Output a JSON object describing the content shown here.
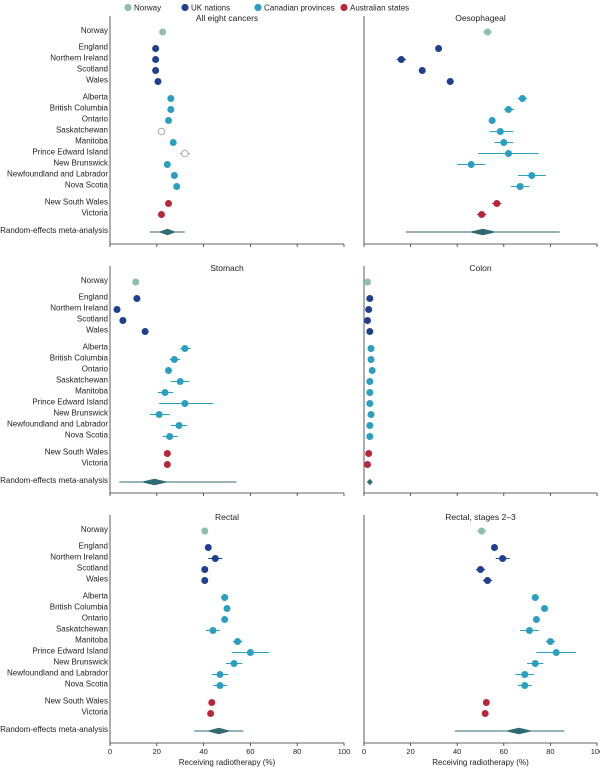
{
  "legend": [
    {
      "label": "Norway",
      "color": "#8fbfa8"
    },
    {
      "label": "UK nations",
      "color": "#1f3f8f"
    },
    {
      "label": "Canadian provinces",
      "color": "#2a9fc0"
    },
    {
      "label": "Australian states",
      "color": "#b8283a"
    }
  ],
  "labels": {
    "top": [
      "Norway",
      "England",
      "Northern Ireland",
      "Scotland",
      "Wales",
      "Alberta",
      "British Columbia",
      "Ontario",
      "Saskatchewan",
      "Manitoba",
      "Prince Edward Island",
      "New Brunswick",
      "Newfoundland and Labrador",
      "Nova Scotia",
      "New South Wales",
      "Victoria",
      "Random-effects meta-analysis"
    ],
    "middle": [
      "Norway",
      "England",
      "Northern Ireland",
      "Scotland",
      "Wales",
      "Alberta",
      "British Columbia",
      "Ontario",
      "Saskatchewan",
      "Manitoba",
      "Prince Edward Island",
      "New Brunswick",
      "Newfoundland and Labrador",
      "Nova Scotia",
      "New South Wales",
      "Victoria",
      "Random-effects meta-analysis"
    ],
    "bottom": [
      "Norway",
      "England",
      "Northern Ireland",
      "Scotland",
      "Wales",
      "Alberta",
      "British Columbia",
      "Ontario",
      "Saskatchewan",
      "Manitoba",
      "Prince Edward Island",
      "New Brunswick",
      "Newfoundland and Labrador",
      "Nova Scotia",
      "New South Wales",
      "Victoria",
      "Random-effects meta-analysis"
    ]
  },
  "xaxis": {
    "label": "Receiving radiotherapy (%)",
    "ticks": [
      "0",
      "20",
      "40",
      "60",
      "80",
      "100"
    ],
    "range": [
      0,
      100
    ]
  },
  "chart_data": [
    {
      "type": "forest",
      "title": "All eight cancers",
      "points": [
        {
          "g": "Norway",
          "v": 22.5,
          "lo": null,
          "hi": null
        },
        {
          "g": "UK nations",
          "v": 19.5,
          "lo": null,
          "hi": null
        },
        {
          "g": "UK nations",
          "v": 19.5,
          "lo": null,
          "hi": null
        },
        {
          "g": "UK nations",
          "v": 19.5,
          "lo": null,
          "hi": null
        },
        {
          "g": "UK nations",
          "v": 20.5,
          "lo": null,
          "hi": null
        },
        {
          "g": "Canadian provinces",
          "v": 26,
          "lo": null,
          "hi": null
        },
        {
          "g": "Canadian provinces",
          "v": 26,
          "lo": null,
          "hi": null
        },
        {
          "g": "Canadian provinces",
          "v": 25,
          "lo": null,
          "hi": null
        },
        {
          "g": "Canadian provinces",
          "v": 22,
          "lo": null,
          "hi": null,
          "open": true
        },
        {
          "g": "Canadian provinces",
          "v": 27,
          "lo": null,
          "hi": null
        },
        {
          "g": "Canadian provinces",
          "v": 32,
          "lo": 30,
          "hi": 34,
          "open": true
        },
        {
          "g": "Canadian provinces",
          "v": 24.5,
          "lo": null,
          "hi": null
        },
        {
          "g": "Canadian provinces",
          "v": 27.5,
          "lo": null,
          "hi": null
        },
        {
          "g": "Canadian provinces",
          "v": 28.5,
          "lo": null,
          "hi": null
        },
        {
          "g": "Australian states",
          "v": 25,
          "lo": null,
          "hi": null
        },
        {
          "g": "Australian states",
          "v": 22,
          "lo": null,
          "hi": null
        }
      ],
      "meta": {
        "v": 24.5,
        "lo": 17,
        "hi": 32
      }
    },
    {
      "type": "forest",
      "title": "Oesophageal",
      "points": [
        {
          "g": "Norway",
          "v": 53,
          "lo": 51,
          "hi": 55
        },
        {
          "g": "UK nations",
          "v": 32,
          "lo": null,
          "hi": null
        },
        {
          "g": "UK nations",
          "v": 16,
          "lo": 14,
          "hi": 18
        },
        {
          "g": "UK nations",
          "v": 25,
          "lo": null,
          "hi": null
        },
        {
          "g": "UK nations",
          "v": 37,
          "lo": 35.5,
          "hi": 38.5
        },
        {
          "g": "Canadian provinces",
          "v": 68,
          "lo": 66,
          "hi": 70
        },
        {
          "g": "Canadian provinces",
          "v": 62,
          "lo": 60,
          "hi": 64.5
        },
        {
          "g": "Canadian provinces",
          "v": 55,
          "lo": 53.5,
          "hi": 56.5
        },
        {
          "g": "Canadian provinces",
          "v": 58.5,
          "lo": 54,
          "hi": 64
        },
        {
          "g": "Canadian provinces",
          "v": 60,
          "lo": 56,
          "hi": 64
        },
        {
          "g": "Canadian provinces",
          "v": 62,
          "lo": 49,
          "hi": 75
        },
        {
          "g": "Canadian provinces",
          "v": 46,
          "lo": 40,
          "hi": 52
        },
        {
          "g": "Canadian provinces",
          "v": 72,
          "lo": 66,
          "hi": 78
        },
        {
          "g": "Canadian provinces",
          "v": 67,
          "lo": 63,
          "hi": 71
        },
        {
          "g": "Australian states",
          "v": 57,
          "lo": 55,
          "hi": 59
        },
        {
          "g": "Australian states",
          "v": 50.5,
          "lo": 48.5,
          "hi": 52.5
        }
      ],
      "meta": {
        "v": 51,
        "lo": 18,
        "hi": 84
      }
    },
    {
      "type": "forest",
      "title": "Stomach",
      "points": [
        {
          "g": "Norway",
          "v": 11,
          "lo": null,
          "hi": null
        },
        {
          "g": "UK nations",
          "v": 11.5,
          "lo": null,
          "hi": null
        },
        {
          "g": "UK nations",
          "v": 3,
          "lo": null,
          "hi": null
        },
        {
          "g": "UK nations",
          "v": 5.5,
          "lo": null,
          "hi": null
        },
        {
          "g": "UK nations",
          "v": 15,
          "lo": 14,
          "hi": 16.5
        },
        {
          "g": "Canadian provinces",
          "v": 32,
          "lo": 30,
          "hi": 34.5
        },
        {
          "g": "Canadian provinces",
          "v": 27.5,
          "lo": 25.5,
          "hi": 30
        },
        {
          "g": "Canadian provinces",
          "v": 25,
          "lo": null,
          "hi": null
        },
        {
          "g": "Canadian provinces",
          "v": 30,
          "lo": 26,
          "hi": 34
        },
        {
          "g": "Canadian provinces",
          "v": 23.5,
          "lo": 20.5,
          "hi": 27
        },
        {
          "g": "Canadian provinces",
          "v": 32,
          "lo": 21,
          "hi": 44
        },
        {
          "g": "Canadian provinces",
          "v": 21,
          "lo": 17,
          "hi": 25.5
        },
        {
          "g": "Canadian provinces",
          "v": 29.5,
          "lo": 26,
          "hi": 33
        },
        {
          "g": "Canadian provinces",
          "v": 25.5,
          "lo": 22.5,
          "hi": 29
        },
        {
          "g": "Australian states",
          "v": 24.5,
          "lo": null,
          "hi": null
        },
        {
          "g": "Australian states",
          "v": 24.5,
          "lo": null,
          "hi": null
        }
      ],
      "meta": {
        "v": 19,
        "lo": 4,
        "hi": 54
      }
    },
    {
      "type": "forest",
      "title": "Colon",
      "points": [
        {
          "g": "Norway",
          "v": 1.5,
          "lo": null,
          "hi": null
        },
        {
          "g": "UK nations",
          "v": 2.5,
          "lo": null,
          "hi": null
        },
        {
          "g": "UK nations",
          "v": 2,
          "lo": null,
          "hi": null
        },
        {
          "g": "UK nations",
          "v": 1.5,
          "lo": null,
          "hi": null
        },
        {
          "g": "UK nations",
          "v": 2.5,
          "lo": null,
          "hi": null
        },
        {
          "g": "Canadian provinces",
          "v": 3,
          "lo": null,
          "hi": null
        },
        {
          "g": "Canadian provinces",
          "v": 3,
          "lo": null,
          "hi": null
        },
        {
          "g": "Canadian provinces",
          "v": 3.5,
          "lo": null,
          "hi": null
        },
        {
          "g": "Canadian provinces",
          "v": 2.5,
          "lo": null,
          "hi": null
        },
        {
          "g": "Canadian provinces",
          "v": 2.5,
          "lo": null,
          "hi": null
        },
        {
          "g": "Canadian provinces",
          "v": 2.5,
          "lo": null,
          "hi": null
        },
        {
          "g": "Canadian provinces",
          "v": 3,
          "lo": null,
          "hi": null
        },
        {
          "g": "Canadian provinces",
          "v": 2.5,
          "lo": null,
          "hi": null
        },
        {
          "g": "Canadian provinces",
          "v": 2.5,
          "lo": null,
          "hi": null
        },
        {
          "g": "Australian states",
          "v": 2,
          "lo": null,
          "hi": null
        },
        {
          "g": "Australian states",
          "v": 1.5,
          "lo": null,
          "hi": null
        }
      ],
      "meta": {
        "v": 2.5,
        "lo": 1.5,
        "hi": 3.5
      }
    },
    {
      "type": "forest",
      "title": "Rectal",
      "points": [
        {
          "g": "Norway",
          "v": 40.5,
          "lo": null,
          "hi": null
        },
        {
          "g": "UK nations",
          "v": 42,
          "lo": null,
          "hi": null
        },
        {
          "g": "UK nations",
          "v": 45,
          "lo": 42,
          "hi": 48
        },
        {
          "g": "UK nations",
          "v": 40.5,
          "lo": null,
          "hi": null
        },
        {
          "g": "UK nations",
          "v": 40.5,
          "lo": null,
          "hi": null
        },
        {
          "g": "Canadian provinces",
          "v": 49,
          "lo": 47.5,
          "hi": 50.5
        },
        {
          "g": "Canadian provinces",
          "v": 50,
          "lo": null,
          "hi": null
        },
        {
          "g": "Canadian provinces",
          "v": 49,
          "lo": null,
          "hi": null
        },
        {
          "g": "Canadian provinces",
          "v": 44,
          "lo": 41,
          "hi": 47
        },
        {
          "g": "Canadian provinces",
          "v": 54.5,
          "lo": 52.5,
          "hi": 56.5
        },
        {
          "g": "Canadian provinces",
          "v": 60,
          "lo": 52,
          "hi": 68
        },
        {
          "g": "Canadian provinces",
          "v": 53,
          "lo": 49.5,
          "hi": 56.5
        },
        {
          "g": "Canadian provinces",
          "v": 47,
          "lo": 43.5,
          "hi": 50.5
        },
        {
          "g": "Canadian provinces",
          "v": 47,
          "lo": 44,
          "hi": 50
        },
        {
          "g": "Australian states",
          "v": 43.5,
          "lo": null,
          "hi": null
        },
        {
          "g": "Australian states",
          "v": 43,
          "lo": null,
          "hi": null
        }
      ],
      "meta": {
        "v": 46.5,
        "lo": 36,
        "hi": 57
      }
    },
    {
      "type": "forest",
      "title": "Rectal, stages 2–3",
      "points": [
        {
          "g": "Norway",
          "v": 50.5,
          "lo": 48.5,
          "hi": 52.5
        },
        {
          "g": "UK nations",
          "v": 56,
          "lo": null,
          "hi": null
        },
        {
          "g": "UK nations",
          "v": 59.5,
          "lo": 56.5,
          "hi": 62.5
        },
        {
          "g": "UK nations",
          "v": 50,
          "lo": 48,
          "hi": 52
        },
        {
          "g": "UK nations",
          "v": 53,
          "lo": 51,
          "hi": 55
        },
        {
          "g": "Canadian provinces",
          "v": 73.5,
          "lo": 72,
          "hi": 75
        },
        {
          "g": "Canadian provinces",
          "v": 77.5,
          "lo": 76,
          "hi": 79
        },
        {
          "g": "Canadian provinces",
          "v": 74,
          "lo": null,
          "hi": null
        },
        {
          "g": "Canadian provinces",
          "v": 71,
          "lo": 67,
          "hi": 75
        },
        {
          "g": "Canadian provinces",
          "v": 80,
          "lo": 78,
          "hi": 82
        },
        {
          "g": "Canadian provinces",
          "v": 82.5,
          "lo": 74,
          "hi": 91
        },
        {
          "g": "Canadian provinces",
          "v": 73.5,
          "lo": 70,
          "hi": 77
        },
        {
          "g": "Canadian provinces",
          "v": 69,
          "lo": 65,
          "hi": 73
        },
        {
          "g": "Canadian provinces",
          "v": 69,
          "lo": 66,
          "hi": 72
        },
        {
          "g": "Australian states",
          "v": 52.5,
          "lo": null,
          "hi": null
        },
        {
          "g": "Australian states",
          "v": 52,
          "lo": null,
          "hi": null
        }
      ],
      "meta": {
        "v": 66.5,
        "lo": 39,
        "hi": 86
      }
    }
  ]
}
